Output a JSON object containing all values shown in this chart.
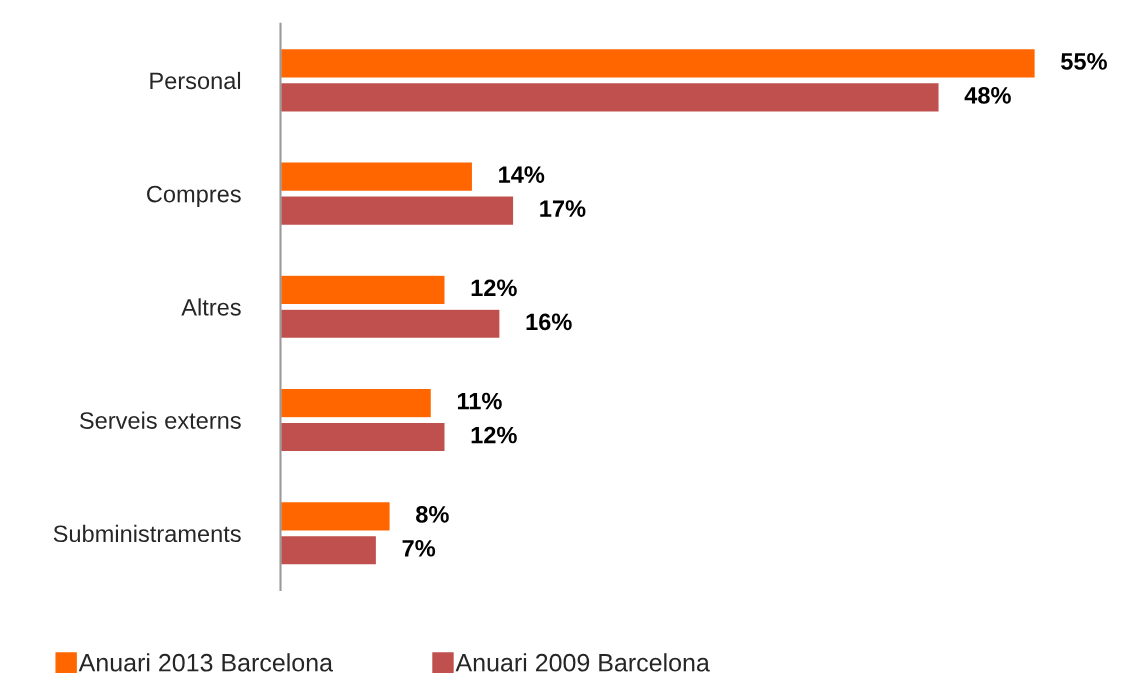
{
  "chart_data": {
    "type": "bar",
    "orientation": "horizontal",
    "categories": [
      "Personal",
      "Compres",
      "Altres",
      "Serveis externs",
      "Subministraments"
    ],
    "tick_labels": "y",
    "grid": false,
    "legend": "bottom",
    "series": [
      {
        "name": "Anuari 2013 Barcelona",
        "color": "#ff6600",
        "values": [
          55,
          14,
          12,
          11,
          8
        ],
        "value_labels": [
          "55%",
          "14%",
          "12%",
          "11%",
          "8%"
        ]
      },
      {
        "name": "Anuari 2009 Barcelona",
        "color": "#c0504d",
        "values": [
          48,
          17,
          16,
          12,
          7
        ],
        "value_labels": [
          "48%",
          "17%",
          "16%",
          "12%",
          "7%"
        ]
      }
    ]
  }
}
